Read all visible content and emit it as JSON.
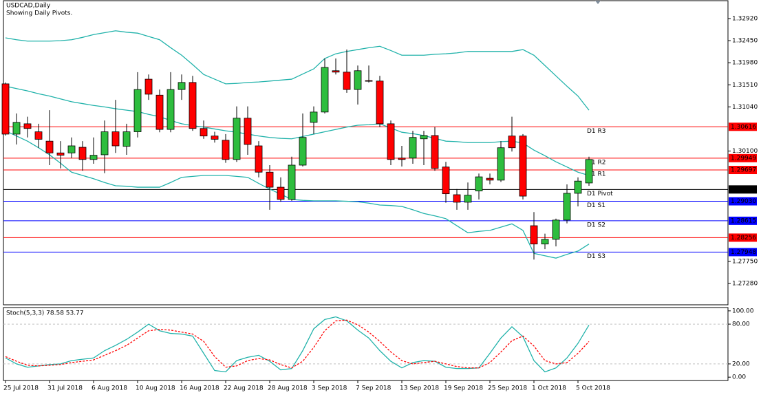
{
  "chart_data": [
    {
      "type": "candlestick",
      "title": "USDCAD,Daily",
      "subtitle": "Showing Daily Pivots.",
      "categories": [
        "25 Jul 2018",
        null,
        null,
        null,
        "31 Jul 2018",
        null,
        null,
        null,
        "6 Aug 2018",
        null,
        null,
        null,
        "10 Aug 2018",
        null,
        null,
        null,
        "16 Aug 2018",
        null,
        null,
        null,
        "22 Aug 2018",
        null,
        null,
        null,
        "28 Aug 2018",
        null,
        null,
        null,
        "3 Sep 2018",
        null,
        null,
        null,
        "7 Sep 2018",
        null,
        null,
        null,
        "13 Sep 2018",
        null,
        null,
        null,
        "19 Sep 2018",
        null,
        null,
        null,
        "25 Sep 2018",
        null,
        null,
        null,
        "1 Oct 2018",
        null,
        null,
        null,
        "5 Oct 2018",
        null
      ],
      "open": [
        1.3153,
        1.3046,
        1.3068,
        1.3051,
        1.3031,
        1.3006,
        1.3006,
        1.3018,
        1.2992,
        1.3002,
        1.3051,
        1.302,
        1.3051,
        1.3163,
        1.3129,
        1.3056,
        1.3141,
        1.3156,
        1.3058,
        1.3042,
        1.3033,
        1.2992,
        1.308,
        1.3021,
        1.2965,
        1.2933,
        1.2907,
        1.298,
        1.3071,
        1.3093,
        1.3181,
        1.3178,
        1.3141,
        1.316,
        1.3159,
        1.3068,
        1.2995,
        1.2995,
        1.3036,
        1.3043,
        1.2976,
        1.2917,
        1.2901,
        1.2925,
        1.2952,
        1.2948,
        1.3042,
        1.3042,
        1.2851,
        1.2812,
        1.2822,
        1.2863,
        1.292,
        1.2942
      ],
      "high": [
        1.3156,
        1.309,
        1.3083,
        1.3068,
        1.3097,
        1.3031,
        1.3039,
        1.3031,
        1.3039,
        1.3075,
        1.3119,
        1.3068,
        1.3178,
        1.3173,
        1.3141,
        1.3178,
        1.3173,
        1.317,
        1.3075,
        1.3051,
        1.3046,
        1.3105,
        1.3105,
        1.3031,
        1.298,
        1.2954,
        1.2998,
        1.309,
        1.3105,
        1.3207,
        1.3207,
        1.3226,
        1.3192,
        1.3192,
        1.317,
        1.3075,
        1.3021,
        1.3053,
        1.3053,
        1.3061,
        1.2987,
        1.2929,
        1.2943,
        1.2962,
        1.2962,
        1.3031,
        1.3083,
        1.3046,
        1.288,
        1.2834,
        1.2866,
        1.2939,
        1.2954,
        1.2998
      ],
      "low": [
        1.3043,
        1.3024,
        1.3039,
        1.3017,
        1.298,
        1.2973,
        1.2995,
        1.2968,
        1.2983,
        1.2963,
        1.3006,
        1.3002,
        1.3039,
        1.3119,
        1.305,
        1.305,
        1.3119,
        1.3053,
        1.3036,
        1.3028,
        1.2985,
        1.2987,
        1.3002,
        1.2954,
        1.2885,
        1.2902,
        1.2904,
        1.2977,
        1.3046,
        1.309,
        1.3173,
        1.3134,
        1.3109,
        1.3156,
        1.3061,
        1.298,
        1.2977,
        1.2983,
        1.298,
        1.2968,
        1.29,
        1.2885,
        1.2885,
        1.2907,
        1.2939,
        1.2944,
        1.3009,
        1.2907,
        1.2779,
        1.2801,
        1.2807,
        1.2856,
        1.2892,
        1.2936
      ],
      "close": [
        1.3046,
        1.3071,
        1.3058,
        1.3035,
        1.3006,
        1.3001,
        1.3021,
        1.2992,
        1.3001,
        1.3051,
        1.3021,
        1.3051,
        1.3141,
        1.3131,
        1.3056,
        1.3141,
        1.3156,
        1.3058,
        1.3042,
        1.3035,
        1.2992,
        1.308,
        1.3024,
        1.2965,
        1.2933,
        1.2907,
        1.298,
        1.3039,
        1.3093,
        1.3188,
        1.3178,
        1.3141,
        1.3181,
        1.3159,
        1.3068,
        1.2992,
        1.2992,
        1.3039,
        1.3043,
        1.2973,
        1.2919,
        1.2901,
        1.2916,
        1.2955,
        1.2948,
        1.3017,
        1.3017,
        1.2914,
        1.2812,
        1.2822,
        1.2863,
        1.292,
        1.2946,
        1.2992
      ],
      "up_color": "#2ebd3e",
      "down_color": "#ff0000",
      "ylim": [
        1.26826,
        1.33301
      ],
      "yticks": [
        {
          "value": 1.3292,
          "label": "1.32920"
        },
        {
          "value": 1.3245,
          "label": "1.32450"
        },
        {
          "value": 1.3198,
          "label": "1.31980"
        },
        {
          "value": 1.3151,
          "label": "1.31510"
        },
        {
          "value": 1.3104,
          "label": "1.31040"
        },
        {
          "value": 1.301,
          "label": "1.30100"
        },
        {
          "value": 1.2775,
          "label": "1.27750"
        },
        {
          "value": 1.2728,
          "label": "1.27280"
        }
      ],
      "series": [
        {
          "color": "#20b2aa",
          "values": [
            1.3251,
            1.3247,
            1.3244,
            1.3244,
            1.3244,
            1.3245,
            1.3247,
            1.3252,
            1.3258,
            1.3262,
            1.3266,
            1.3263,
            1.3261,
            1.3254,
            1.3247,
            1.323,
            1.3214,
            1.3194,
            1.3173,
            1.3163,
            1.3153,
            1.3154,
            1.3156,
            1.3157,
            1.3159,
            1.3161,
            1.3163,
            1.3174,
            1.3185,
            1.3207,
            1.3217,
            1.3222,
            1.3226,
            1.323,
            1.3233,
            1.3224,
            1.3214,
            1.3214,
            1.3214,
            1.3216,
            1.3217,
            1.3219,
            1.3222,
            1.3222,
            1.3222,
            1.3222,
            1.3222,
            1.3226,
            1.3214,
            1.3192,
            1.317,
            1.3148,
            1.3127,
            1.3097
          ]
        },
        {
          "color": "#20b2aa",
          "values": [
            1.3148,
            1.3143,
            1.3138,
            1.3132,
            1.3127,
            1.3121,
            1.3115,
            1.3111,
            1.3107,
            1.3104,
            1.31,
            1.3097,
            1.3094,
            1.3088,
            1.3083,
            1.3075,
            1.3068,
            1.3064,
            1.3061,
            1.3057,
            1.3053,
            1.305,
            1.3046,
            1.3042,
            1.3039,
            1.3037,
            1.3036,
            1.3041,
            1.3046,
            1.3051,
            1.3056,
            1.3061,
            1.3065,
            1.3066,
            1.3068,
            1.3059,
            1.305,
            1.3047,
            1.3043,
            1.3037,
            1.3031,
            1.303,
            1.3028,
            1.3028,
            1.3028,
            1.303,
            1.3031,
            1.3027,
            1.3012,
            1.3,
            1.2987,
            1.2976,
            1.2965,
            1.2958
          ]
        },
        {
          "color": "#20b2aa",
          "values": [
            1.3053,
            1.3042,
            1.3031,
            1.3017,
            1.3002,
            1.2984,
            1.2965,
            1.2958,
            1.2951,
            1.2943,
            1.2936,
            1.2935,
            1.2933,
            1.2933,
            1.2933,
            1.2943,
            1.2954,
            1.2956,
            1.2958,
            1.2958,
            1.2958,
            1.2956,
            1.2954,
            1.2941,
            1.2929,
            1.2918,
            1.2907,
            1.2905,
            1.2904,
            1.2904,
            1.2904,
            1.2903,
            1.2902,
            1.2899,
            1.2895,
            1.2894,
            1.2892,
            1.2885,
            1.2877,
            1.2872,
            1.2866,
            1.2851,
            1.2836,
            1.2839,
            1.2841,
            1.2848,
            1.2855,
            1.2841,
            1.2792,
            1.2787,
            1.2782,
            1.279,
            1.2797,
            1.2812
          ]
        }
      ],
      "levels": [
        {
          "name": "D1 R3",
          "value": 1.30616,
          "color": "#ff0000"
        },
        {
          "name": "D1 R2",
          "value": 1.29949,
          "color": "#ff0000"
        },
        {
          "name": "D1 R1",
          "value": 1.29697,
          "color": "#ff0000"
        },
        {
          "name": "D1 Pivot",
          "value": 1.29282,
          "color": "#000000"
        },
        {
          "name": "D1 S1",
          "value": 1.2903,
          "label": "1.29030",
          "color": "#0000ff"
        },
        {
          "name": "D1 S2",
          "value": 1.28615,
          "color": "#0000ff"
        },
        {
          "value": 1.28256,
          "color": "#ff0000"
        },
        {
          "name": "D1 S3",
          "value": 1.27948,
          "color": "#0000ff"
        }
      ]
    },
    {
      "type": "line",
      "title": "Stoch(5,3,3) 78.58 53.77",
      "ylim": [
        -5,
        105
      ],
      "yticks": [
        {
          "value": 100,
          "label": "100.00"
        },
        {
          "value": 80,
          "label": "80.00"
        },
        {
          "value": 20,
          "label": "20.00"
        },
        {
          "value": 0,
          "label": "0.00"
        }
      ],
      "levels": [
        80,
        20
      ],
      "series": [
        {
          "color": "#20b2aa",
          "style": "solid",
          "values": [
            29,
            20,
            15,
            17,
            19,
            20,
            25,
            27,
            29,
            40,
            48,
            57,
            68,
            80,
            70,
            66,
            65,
            62,
            36,
            10,
            8,
            25,
            30,
            33,
            24,
            11,
            13,
            40,
            73,
            87,
            91,
            85,
            71,
            59,
            40,
            24,
            14,
            22,
            25,
            24,
            15,
            13,
            13,
            14,
            36,
            59,
            76,
            61,
            25,
            8,
            14,
            29,
            51,
            78.58
          ]
        },
        {
          "color": "#ff0000",
          "style": "dashed",
          "values": [
            31,
            24,
            18,
            17,
            18,
            19,
            22,
            24,
            26,
            33,
            40,
            48,
            59,
            70,
            72,
            71,
            68,
            65,
            54,
            31,
            15,
            17,
            25,
            28,
            26,
            19,
            14,
            24,
            45,
            70,
            85,
            86,
            79,
            68,
            54,
            38,
            25,
            20,
            22,
            24,
            20,
            16,
            14,
            14,
            22,
            38,
            55,
            62,
            47,
            25,
            20,
            22,
            36,
            53.77
          ]
        }
      ]
    }
  ]
}
